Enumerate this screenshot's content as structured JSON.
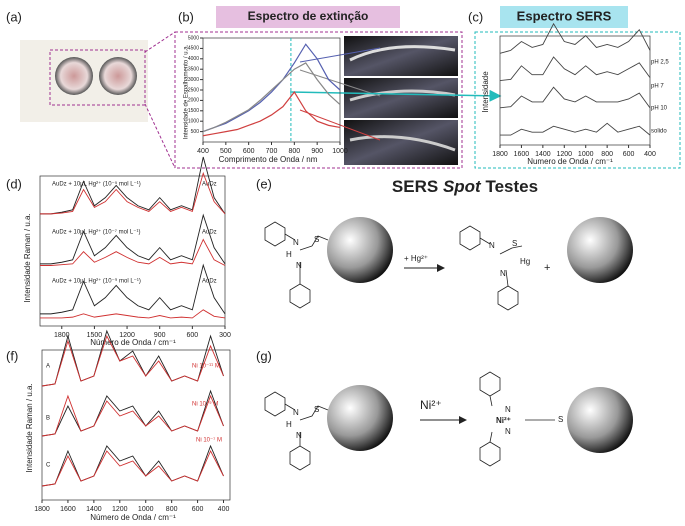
{
  "panel_labels": [
    "(a)",
    "(b)",
    "(c)",
    "(d)",
    "(e)",
    "(f)",
    "(g)"
  ],
  "b": {
    "title": "Espectro de extinção",
    "xlabel": "Comprimento de Onda / nm",
    "ylabel": "Intensidade de Espalhamento / u.a.",
    "xlim": [
      400,
      1000
    ],
    "ylim": [
      0,
      5000
    ],
    "xticks": [
      400,
      500,
      600,
      700,
      800,
      900,
      1000
    ],
    "yticks": [
      500,
      1000,
      1500,
      2000,
      2500,
      3000,
      3500,
      4000,
      4500,
      5000
    ],
    "x": [
      400,
      450,
      500,
      550,
      600,
      650,
      700,
      750,
      800,
      850,
      900,
      950,
      1000
    ],
    "highlight_x": 785,
    "series": [
      {
        "color": "#5560b0",
        "values": [
          500,
          700,
          900,
          1200,
          1500,
          1900,
          2400,
          3000,
          3800,
          4700,
          4000,
          3000,
          2500
        ]
      },
      {
        "color": "#888888",
        "values": [
          500,
          700,
          950,
          1250,
          1550,
          2000,
          2500,
          3000,
          3500,
          3800,
          3000,
          2300,
          1800
        ]
      },
      {
        "color": "#d04040",
        "values": [
          300,
          400,
          500,
          600,
          800,
          1000,
          1300,
          1700,
          2400,
          1500,
          1000,
          800,
          700
        ]
      }
    ]
  },
  "c": {
    "title": "Espectro SERS",
    "xlabel": "Numero de Onda / cm⁻¹",
    "ylabel": "Intensidade",
    "xlim": [
      1800,
      400
    ],
    "xticks": [
      1800,
      1600,
      1400,
      1200,
      1000,
      800,
      600,
      400
    ],
    "x": [
      1800,
      1700,
      1600,
      1500,
      1400,
      1300,
      1200,
      1100,
      1000,
      900,
      800,
      700,
      600,
      500,
      400
    ],
    "series": [
      {
        "name": "pH 2,5",
        "color": "#444",
        "values": [
          1,
          1.5,
          3,
          2,
          2.5,
          6,
          3,
          2.5,
          4,
          2,
          2.5,
          2,
          3,
          5,
          1.5
        ]
      },
      {
        "name": "pH 7",
        "color": "#444",
        "values": [
          1,
          1.2,
          3.5,
          2,
          2,
          5,
          3,
          2,
          3.5,
          2,
          2.5,
          2,
          3,
          4,
          1.5
        ]
      },
      {
        "name": "pH 10",
        "color": "#444",
        "values": [
          1,
          1.2,
          3,
          2,
          2,
          4.5,
          2.5,
          2,
          3,
          2,
          2,
          2,
          2.5,
          3.5,
          1
        ]
      },
      {
        "name": "solido",
        "color": "#444",
        "values": [
          1,
          1,
          2,
          1.5,
          1.5,
          2.5,
          2,
          1.5,
          2,
          1.5,
          3,
          1.5,
          2,
          2.5,
          1
        ]
      }
    ]
  },
  "d": {
    "xlabel": "Número de Onda / cm⁻¹",
    "ylabel": "Intensidade Raman / u.a.",
    "xlim": [
      2000,
      300
    ],
    "xticks": [
      1800,
      1500,
      1200,
      900,
      600,
      300
    ],
    "x": [
      2000,
      1900,
      1800,
      1700,
      1600,
      1500,
      1400,
      1300,
      1200,
      1100,
      1000,
      900,
      800,
      700,
      600,
      500,
      400,
      300
    ],
    "traces": [
      {
        "label": "AuDz + 10µL Hg²⁺ (10⁻⁵ mol L⁻¹)",
        "ref": "AuDz",
        "series": [
          {
            "color": "#222",
            "values": [
              1,
              1,
              1.2,
              1.5,
              5,
              2,
              3,
              4.5,
              3,
              2,
              1.5,
              3,
              1.5,
              2,
              1.5,
              8,
              3,
              1
            ]
          },
          {
            "color": "#d03030",
            "values": [
              1,
              1,
              1.1,
              1.3,
              4,
              1.8,
              2.5,
              4,
              2.5,
              1.8,
              1.3,
              2.5,
              1.3,
              1.8,
              1.3,
              6,
              2.5,
              1
            ]
          }
        ]
      },
      {
        "label": "AuDz + 10µL Hg²⁺ (10⁻⁷ mol L⁻¹)",
        "ref": "AuDz",
        "series": [
          {
            "color": "#222",
            "values": [
              1,
              1,
              1.2,
              1.5,
              5,
              2,
              3,
              4.5,
              3,
              2,
              1.5,
              3,
              1.5,
              2,
              1.5,
              7,
              3,
              1
            ]
          },
          {
            "color": "#d03030",
            "values": [
              0.8,
              0.8,
              0.9,
              1,
              2.5,
              1.2,
              1.8,
              2.5,
              1.8,
              1.2,
              1,
              1.8,
              1,
              1.2,
              1,
              4,
              1.5,
              0.8
            ]
          }
        ]
      },
      {
        "label": "AuDz + 10µL Hg²⁺ (10⁻⁹ mol L⁻¹)",
        "ref": "AuDz",
        "series": [
          {
            "color": "#222",
            "values": [
              1,
              1,
              1.2,
              1.5,
              5,
              2,
              3,
              4.5,
              3,
              2,
              1.5,
              3,
              1.5,
              2,
              1.5,
              7,
              3,
              1
            ]
          },
          {
            "color": "#d03030",
            "values": [
              0.5,
              0.5,
              0.5,
              0.6,
              1,
              0.6,
              0.8,
              1,
              0.8,
              0.6,
              0.5,
              0.8,
              0.5,
              0.6,
              0.5,
              1.5,
              0.7,
              0.5
            ]
          }
        ]
      }
    ]
  },
  "e": {
    "title": [
      "SERS ",
      "Spot",
      " Testes"
    ],
    "reagent": "+ Hg²⁺",
    "plus": "+",
    "n": "N",
    "s": "S",
    "h": "H",
    "hg": "Hg"
  },
  "f": {
    "xlabel": "Número de Onda / cm⁻¹",
    "ylabel": "Intensidade Raman / u.a.",
    "xlim": [
      1800,
      350
    ],
    "xticks": [
      1800,
      1600,
      1400,
      1200,
      1000,
      800,
      600,
      400
    ],
    "x": [
      1800,
      1700,
      1600,
      1500,
      1400,
      1300,
      1200,
      1100,
      1000,
      900,
      800,
      700,
      600,
      500,
      400
    ],
    "traces": [
      {
        "label": "A",
        "conc": "Ni 10⁻¹¹ M",
        "series": [
          {
            "color": "#222",
            "values": [
              1,
              1.2,
              6,
              1.5,
              2,
              6.5,
              3.5,
              4.5,
              2,
              4,
              1.5,
              2,
              1.5,
              6,
              2
            ]
          },
          {
            "color": "#d03030",
            "values": [
              1,
              1.2,
              5.5,
              1.5,
              2,
              6,
              3.5,
              4,
              2,
              3.5,
              1.5,
              2,
              1.5,
              5,
              2
            ]
          }
        ]
      },
      {
        "label": "B",
        "conc": "Ni 10⁻⁹ M",
        "series": [
          {
            "color": "#222",
            "values": [
              1,
              1.2,
              4,
              1.5,
              2,
              5,
              3.5,
              4,
              2,
              3.5,
              1.5,
              2,
              1.5,
              5.5,
              2
            ]
          },
          {
            "color": "#d03030",
            "values": [
              1,
              1.2,
              5,
              1.5,
              2,
              4.5,
              3,
              3.5,
              2,
              3,
              1.5,
              2,
              1.5,
              5,
              2
            ]
          }
        ]
      },
      {
        "label": "C",
        "conc": "Ni 10⁻⁷ M",
        "series": [
          {
            "color": "#222",
            "values": [
              1,
              1.2,
              4.5,
              1.5,
              2,
              5,
              3.5,
              4,
              2,
              3.5,
              1.5,
              2,
              1.5,
              5,
              2
            ]
          },
          {
            "color": "#d03030",
            "values": [
              1,
              1.2,
              4,
              1.5,
              2,
              4.5,
              3,
              3.5,
              2,
              3,
              1.5,
              2,
              1.5,
              4.5,
              2
            ]
          }
        ]
      }
    ]
  },
  "g": {
    "reagent": "Ni²⁺",
    "center": "Ni²⁺",
    "n": "N",
    "s": "S",
    "h": "H"
  }
}
